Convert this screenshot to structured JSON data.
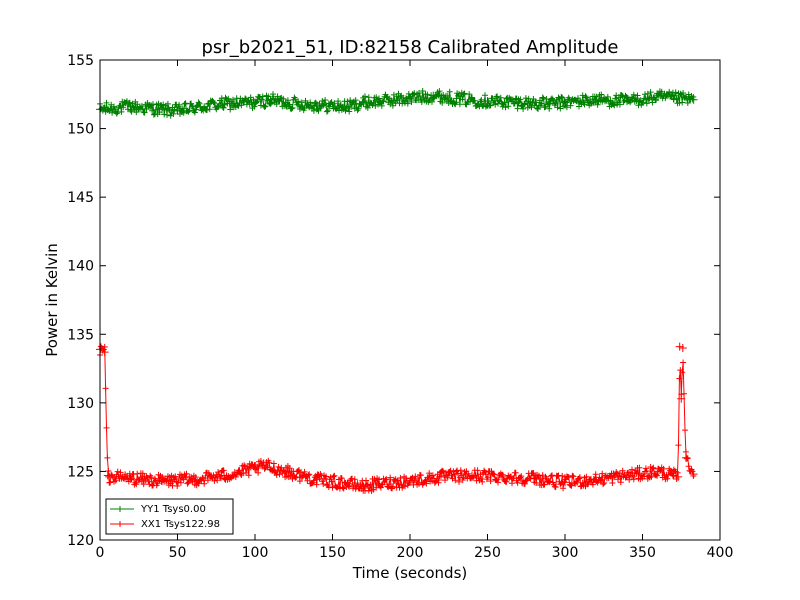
{
  "chart_data": {
    "type": "line",
    "title": "psr_b2021_51, ID:82158 Calibrated Amplitude",
    "xlabel": "Time (seconds)",
    "ylabel": "Power in Kelvin",
    "xlim": [
      0,
      400
    ],
    "ylim": [
      120,
      155
    ],
    "x_ticks": [
      0,
      50,
      100,
      150,
      200,
      250,
      300,
      350,
      400
    ],
    "y_ticks": [
      120,
      125,
      130,
      135,
      140,
      145,
      150,
      155
    ],
    "grid": false,
    "legend_position": "lower-left",
    "series": [
      {
        "name": "YY1 Tsys0.00",
        "color": "#008000",
        "marker": "+",
        "x": [
          0,
          20,
          40,
          50,
          60,
          80,
          100,
          110,
          120,
          140,
          160,
          170,
          180,
          200,
          215,
          230,
          250,
          270,
          290,
          300,
          320,
          340,
          360,
          370,
          383
        ],
        "y": [
          151.4,
          151.6,
          151.4,
          151.3,
          151.5,
          151.8,
          151.9,
          152.1,
          151.9,
          151.7,
          151.6,
          151.9,
          152.0,
          152.2,
          152.4,
          152.2,
          152.0,
          151.9,
          151.8,
          151.9,
          152.1,
          152.0,
          152.3,
          152.2,
          152.1
        ]
      },
      {
        "name": "XX1 Tsys122.98",
        "color": "#ff0000",
        "marker": "+",
        "x": [
          0,
          3,
          5,
          6,
          20,
          40,
          60,
          80,
          100,
          107,
          120,
          140,
          160,
          170,
          180,
          200,
          220,
          240,
          260,
          280,
          300,
          320,
          340,
          360,
          370,
          373,
          374,
          375,
          376,
          378,
          383
        ],
        "y": [
          133.9,
          133.7,
          124.7,
          124.6,
          124.5,
          124.3,
          124.4,
          124.7,
          125.2,
          125.4,
          125.0,
          124.4,
          124.1,
          123.9,
          124.1,
          124.3,
          124.6,
          124.7,
          124.6,
          124.5,
          124.2,
          124.4,
          124.7,
          125.0,
          124.7,
          124.6,
          134.1,
          130.3,
          134.0,
          126.0,
          124.8
        ]
      }
    ]
  }
}
